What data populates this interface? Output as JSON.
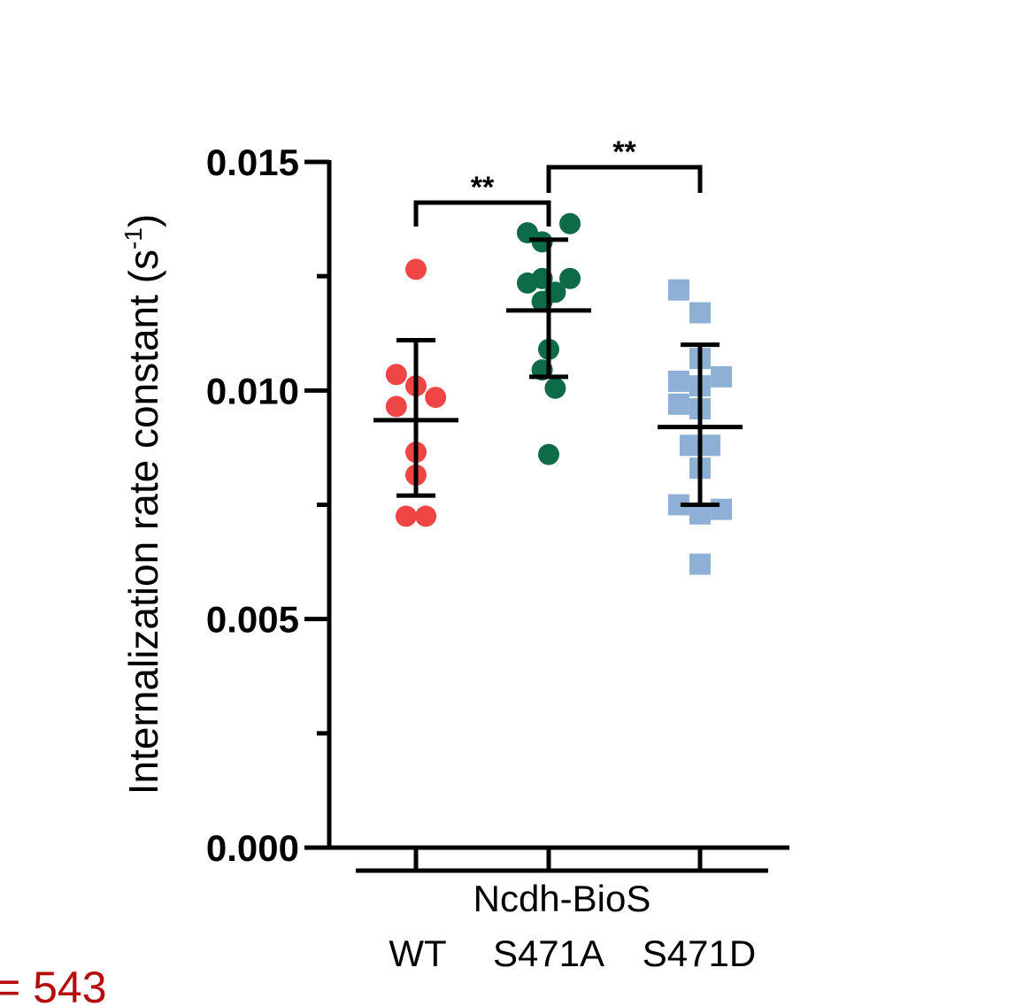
{
  "chart_data": {
    "type": "scatter",
    "ylabel": "Internalization rate constant (s",
    "ylabel_superscript": "-1",
    "ylabel_close": ")",
    "ylim": [
      0,
      0.015
    ],
    "y_ticks": [
      {
        "value": 0.0,
        "label": "0.000"
      },
      {
        "value": 0.005,
        "label": "0.005"
      },
      {
        "value": 0.01,
        "label": "0.010"
      },
      {
        "value": 0.015,
        "label": "0.015"
      }
    ],
    "y_minor_ticks": [
      0.0025,
      0.0075,
      0.0125
    ],
    "x_title": "Ncdh-BioS",
    "categories": [
      "WT",
      "S471A",
      "S471D"
    ],
    "series": [
      {
        "category": "WT",
        "marker": "circle",
        "color": "#f04545",
        "mean": 0.00935,
        "err_low": 0.0077,
        "err_high": 0.0111,
        "points": [
          {
            "jitter": 0,
            "y": 0.01265
          },
          {
            "jitter": -0.6,
            "y": 0.01035
          },
          {
            "jitter": 0,
            "y": 0.0101
          },
          {
            "jitter": 0.6,
            "y": 0.00985
          },
          {
            "jitter": -0.6,
            "y": 0.00965
          },
          {
            "jitter": 0,
            "y": 0.00865
          },
          {
            "jitter": 0,
            "y": 0.00815
          },
          {
            "jitter": -0.3,
            "y": 0.00725
          },
          {
            "jitter": 0.3,
            "y": 0.00725
          }
        ]
      },
      {
        "category": "S471A",
        "marker": "circle",
        "color": "#0e6b48",
        "mean": 0.01175,
        "err_low": 0.0103,
        "err_high": 0.0133,
        "points": [
          {
            "jitter": -0.65,
            "y": 0.01345
          },
          {
            "jitter": 0.65,
            "y": 0.01365
          },
          {
            "jitter": -0.2,
            "y": 0.01325
          },
          {
            "jitter": -0.65,
            "y": 0.01235
          },
          {
            "jitter": -0.2,
            "y": 0.01245
          },
          {
            "jitter": 0.65,
            "y": 0.01245
          },
          {
            "jitter": 0.2,
            "y": 0.01215
          },
          {
            "jitter": -0.2,
            "y": 0.01195
          },
          {
            "jitter": 0,
            "y": 0.0109
          },
          {
            "jitter": -0.2,
            "y": 0.01045
          },
          {
            "jitter": 0.2,
            "y": 0.01005
          },
          {
            "jitter": 0,
            "y": 0.0086
          }
        ]
      },
      {
        "category": "S471D",
        "marker": "square",
        "color": "#8eb0d6",
        "mean": 0.0092,
        "err_low": 0.0075,
        "err_high": 0.011,
        "points": [
          {
            "jitter": -0.65,
            "y": 0.0122
          },
          {
            "jitter": 0,
            "y": 0.0117
          },
          {
            "jitter": 0,
            "y": 0.0107
          },
          {
            "jitter": 0.65,
            "y": 0.0103
          },
          {
            "jitter": -0.65,
            "y": 0.0102
          },
          {
            "jitter": 0,
            "y": 0.0101
          },
          {
            "jitter": -0.65,
            "y": 0.0097
          },
          {
            "jitter": 0,
            "y": 0.0096
          },
          {
            "jitter": -0.3,
            "y": 0.0088
          },
          {
            "jitter": 0.3,
            "y": 0.0088
          },
          {
            "jitter": 0,
            "y": 0.0083
          },
          {
            "jitter": -0.65,
            "y": 0.0075
          },
          {
            "jitter": 0.65,
            "y": 0.0074
          },
          {
            "jitter": 0,
            "y": 0.0073
          },
          {
            "jitter": 0,
            "y": 0.0062
          }
        ]
      }
    ],
    "significance": [
      {
        "from": "WT",
        "to": "S471A",
        "label": "**"
      },
      {
        "from": "S471A",
        "to": "S471D",
        "label": "**"
      }
    ],
    "grid": false,
    "legend": "none"
  },
  "stray_text": "= 543"
}
